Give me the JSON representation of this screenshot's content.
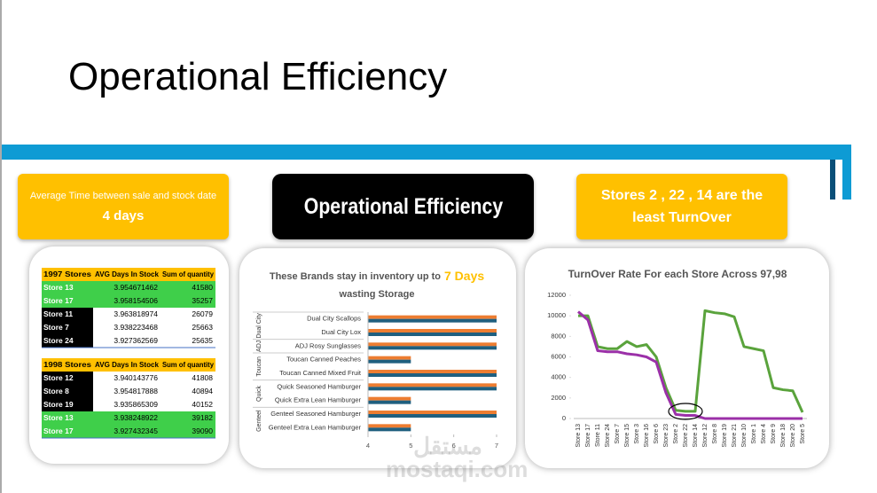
{
  "title": "Operational Efficiency",
  "cards": [
    {
      "line1": "Average Time between sale and stock date",
      "line2": "4 days"
    },
    {
      "line1": "Operational Efficiency"
    },
    {
      "line1": "Stores 2 , 22 , 14 are the least TurnOver"
    }
  ],
  "tables": [
    {
      "header": [
        "1997 Stores",
        "AVG Days In Stock",
        "Sum of quantity"
      ],
      "rows": [
        [
          "Store 13",
          "3.954671462",
          "41580"
        ],
        [
          "Store 17",
          "3.958154506",
          "35257"
        ],
        [
          "Store 11",
          "3.963818974",
          "26079"
        ],
        [
          "Store 7",
          "3.938223468",
          "25663"
        ],
        [
          "Store 24",
          "3.927362569",
          "25635"
        ]
      ],
      "green_rows": [
        0,
        1
      ]
    },
    {
      "header": [
        "1998 Stores",
        "AVG Days In Stock",
        "Sum of quantity"
      ],
      "rows": [
        [
          "Store 12",
          "3.940143776",
          "41808"
        ],
        [
          "Store 8",
          "3.954817888",
          "40894"
        ],
        [
          "Store 19",
          "3.935865309",
          "40152"
        ],
        [
          "Store 13",
          "3.938248922",
          "39182"
        ],
        [
          "Store 17",
          "3.927432345",
          "39090"
        ]
      ],
      "green_rows": [
        3,
        4
      ]
    }
  ],
  "chart_data": [
    {
      "type": "hbar",
      "title_prefix": "These Brands stay in inventory up to",
      "title_highlight": "7 Days",
      "title_suffix": "wasting Storage",
      "categories": [
        "Dual City Scallops",
        "Dual City Lox",
        "ADJ Rosy Sunglasses",
        "Toucan Canned Peaches",
        "Toucan Canned Mixed Fruit",
        "Quick Seasoned Hamburger",
        "Quick Extra Lean Hamburger",
        "Genteel Seasoned Hamburger",
        "Genteel Extra Lean Hamburger"
      ],
      "groups": [
        {
          "label": "Dual City",
          "size": 2
        },
        {
          "label": "ADJ",
          "size": 1
        },
        {
          "label": "Toucan",
          "size": 2
        },
        {
          "label": "Quick",
          "size": 2
        },
        {
          "label": "Genteel",
          "size": 2
        }
      ],
      "series": [
        {
          "color": "#ed7d31",
          "values": [
            7,
            7,
            7,
            5,
            7,
            7,
            5,
            7,
            5
          ]
        },
        {
          "color": "#1f5f7f",
          "values": [
            7,
            7,
            7,
            5,
            7,
            7,
            5,
            7,
            5
          ]
        }
      ],
      "xlim": [
        4,
        7
      ],
      "xticks": [
        4,
        5,
        6,
        7
      ]
    },
    {
      "type": "line",
      "title": "TurnOver Rate For each Store Across 97,98",
      "categories": [
        "Store 13",
        "Store 17",
        "Store 11",
        "Store 24",
        "Store 7",
        "Store 15",
        "Store 3",
        "Store 16",
        "Store 6",
        "Store 23",
        "Store 2",
        "Store 22",
        "Store 14",
        "Store 12",
        "Store 8",
        "Store 19",
        "Store 21",
        "Store 10",
        "Store 1",
        "Store 4",
        "Store 9",
        "Store 18",
        "Store 20",
        "Store 5"
      ],
      "series": [
        {
          "color": "#5aa33c",
          "values": [
            10000,
            10000,
            7000,
            6800,
            6800,
            7500,
            7000,
            7200,
            6000,
            3000,
            800,
            700,
            700,
            10500,
            10300,
            10200,
            9900,
            7000,
            6800,
            6600,
            3000,
            2800,
            2700,
            600
          ]
        },
        {
          "color": "#9b30a8",
          "values": [
            10400,
            9600,
            6600,
            6500,
            6500,
            6300,
            6200,
            6000,
            5500,
            2500,
            400,
            300,
            300,
            0,
            0,
            0,
            0,
            0,
            0,
            0,
            0,
            0,
            0,
            0
          ]
        }
      ],
      "ylim": [
        0,
        12000
      ],
      "yticks": [
        0,
        2000,
        4000,
        6000,
        8000,
        10000,
        12000
      ]
    }
  ],
  "watermark": "مستقل mostaqi.com"
}
